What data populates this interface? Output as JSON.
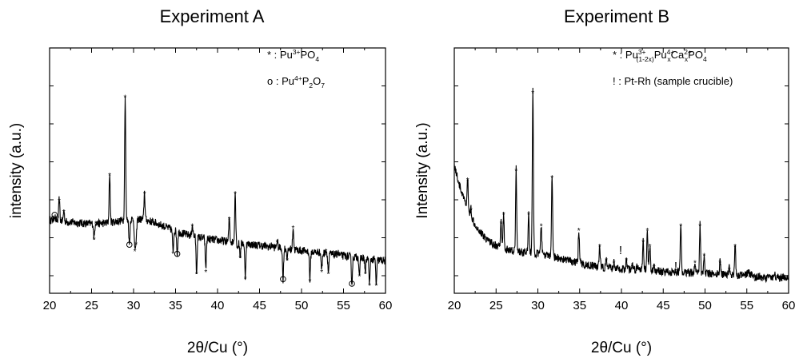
{
  "chart_data": [
    {
      "type": "line",
      "title": "Experiment A",
      "xlabel": "2θ/Cu (°)",
      "ylabel": "intensity (a.u.)",
      "xlim": [
        20,
        60
      ],
      "ylim": [
        0,
        1
      ],
      "x_ticks": [
        "20",
        "25",
        "30",
        "35",
        "40",
        "45",
        "50",
        "55",
        "60"
      ],
      "y_tick_labels": "none",
      "legend": [
        {
          "marker": "*",
          "sep": " : ",
          "base": "Pu",
          "sup": "3+",
          "rest": "PO",
          "sub": "4"
        },
        {
          "marker": "o",
          "sep": " : ",
          "base": "Pu",
          "sup": "4+",
          "rest": "P",
          "sub": "2",
          "rest2": "O",
          "sub2": "7"
        }
      ],
      "series": [
        {
          "values": "diffraction pattern"
        }
      ],
      "peaks": [
        {
          "x": 20.6,
          "y": 0.3,
          "m": "o"
        },
        {
          "x": 21.15,
          "y": 0.37,
          "m": "*"
        },
        {
          "x": 21.7,
          "y": 0.32,
          "m": "*"
        },
        {
          "x": 25.3,
          "y": 0.2,
          "m": "*"
        },
        {
          "x": 25.5,
          "y": 0.27,
          "m": "*"
        },
        {
          "x": 27.15,
          "y": 0.48,
          "m": "*"
        },
        {
          "x": 29.0,
          "y": 0.82,
          "m": "*"
        },
        {
          "x": 29.5,
          "y": 0.17,
          "m": "o"
        },
        {
          "x": 30.15,
          "y": 0.15,
          "m": "*"
        },
        {
          "x": 30.3,
          "y": 0.18,
          "m": "*"
        },
        {
          "x": 31.3,
          "y": 0.4,
          "m": "*"
        },
        {
          "x": 34.7,
          "y": 0.14,
          "m": "*"
        },
        {
          "x": 35.2,
          "y": 0.13,
          "m": "o"
        },
        {
          "x": 37.0,
          "y": 0.26,
          "m": "*"
        },
        {
          "x": 37.5,
          "y": 0.05,
          "m": "*"
        },
        {
          "x": 38.6,
          "y": 0.06,
          "m": "*"
        },
        {
          "x": 41.4,
          "y": 0.29,
          "m": "*"
        },
        {
          "x": 42.1,
          "y": 0.4,
          "m": "*"
        },
        {
          "x": 42.4,
          "y": 0.16,
          "m": "*"
        },
        {
          "x": 42.7,
          "y": 0.12,
          "m": "*"
        },
        {
          "x": 43.3,
          "y": 0.03,
          "m": "*"
        },
        {
          "x": 46.5,
          "y": 0.17,
          "m": "*"
        },
        {
          "x": 47.1,
          "y": 0.19,
          "m": "*"
        },
        {
          "x": 47.8,
          "y": 0.02,
          "m": "o"
        },
        {
          "x": 48.3,
          "y": 0.11,
          "m": "*"
        },
        {
          "x": 49.0,
          "y": 0.25,
          "m": "*"
        },
        {
          "x": 51.0,
          "y": 0.02,
          "m": "*"
        },
        {
          "x": 52.0,
          "y": 0.14,
          "m": "*"
        },
        {
          "x": 52.4,
          "y": 0.06,
          "m": "*"
        },
        {
          "x": 52.9,
          "y": 0.15,
          "m": "*"
        },
        {
          "x": 53.2,
          "y": 0.05,
          "m": "*"
        },
        {
          "x": 54.3,
          "y": 0.14,
          "m": "*"
        },
        {
          "x": 56.0,
          "y": 0.0,
          "m": "o"
        },
        {
          "x": 56.9,
          "y": 0.04,
          "m": "*"
        },
        {
          "x": 57.6,
          "y": 0.05,
          "m": "*"
        },
        {
          "x": 58.1,
          "y": 0.0,
          "m": "*"
        },
        {
          "x": 58.9,
          "y": 0.0,
          "m": "*"
        }
      ]
    },
    {
      "type": "line",
      "title": "Experiment B",
      "xlabel": "2θ/Cu (°)",
      "ylabel": "Intensity (a.u.)",
      "xlim": [
        20,
        60
      ],
      "ylim": [
        0,
        1
      ],
      "x_ticks": [
        "20",
        "25",
        "30",
        "35",
        "40",
        "45",
        "50",
        "55",
        "60"
      ],
      "y_tick_labels": "none",
      "legend": [
        {
          "marker": "*",
          "sep": " : ",
          "base": "Pu",
          "sup": "3+",
          "sub": "(1-2x)",
          "rest": "Pu",
          "sup2": "4+",
          "sub2": "x",
          "rest2": "Ca",
          "sup3": "2+",
          "sub3": "x",
          "rest3": "PO",
          "sub4": "4"
        },
        {
          "marker": "!",
          "sep": " : ",
          "text": "Pt-Rh (sample crucible)"
        }
      ],
      "series": [
        {
          "values": "diffraction pattern"
        }
      ],
      "peaks": [
        {
          "x": 21.6,
          "y": 0.46,
          "m": "*"
        },
        {
          "x": 22.0,
          "y": 0.33,
          "m": "*"
        },
        {
          "x": 25.6,
          "y": 0.27,
          "m": "*"
        },
        {
          "x": 25.9,
          "y": 0.31,
          "m": "*"
        },
        {
          "x": 27.4,
          "y": 0.5,
          "m": "*"
        },
        {
          "x": 28.9,
          "y": 0.31,
          "m": "*"
        },
        {
          "x": 29.4,
          "y": 0.84,
          "m": "*"
        },
        {
          "x": 30.4,
          "y": 0.26,
          "m": "*"
        },
        {
          "x": 31.7,
          "y": 0.47,
          "m": "*"
        },
        {
          "x": 34.9,
          "y": 0.24,
          "m": "*"
        },
        {
          "x": 37.4,
          "y": 0.17,
          "m": "*"
        },
        {
          "x": 38.2,
          "y": 0.11,
          "m": "*"
        },
        {
          "x": 39.1,
          "y": 0.1,
          "m": "*"
        },
        {
          "x": 40.6,
          "y": 0.11,
          "m": "*"
        },
        {
          "x": 41.3,
          "y": 0.08,
          "m": "*"
        },
        {
          "x": 41.9,
          "y": 0.08,
          "m": "*"
        },
        {
          "x": 42.6,
          "y": 0.19,
          "m": "*"
        },
        {
          "x": 43.1,
          "y": 0.24,
          "m": "*"
        },
        {
          "x": 43.4,
          "y": 0.17,
          "m": "*"
        },
        {
          "x": 43.9,
          "y": 0.08,
          "m": "*"
        },
        {
          "x": 45.9,
          "y": 0.05,
          "m": "*"
        },
        {
          "x": 47.1,
          "y": 0.26,
          "m": "*"
        },
        {
          "x": 47.9,
          "y": 0.06,
          "m": "*"
        },
        {
          "x": 48.8,
          "y": 0.1,
          "m": "*"
        },
        {
          "x": 49.4,
          "y": 0.26,
          "m": "*"
        },
        {
          "x": 49.9,
          "y": 0.13,
          "m": "*"
        },
        {
          "x": 51.8,
          "y": 0.1,
          "m": "*"
        },
        {
          "x": 52.9,
          "y": 0.07,
          "m": "*"
        },
        {
          "x": 53.6,
          "y": 0.17,
          "m": "*"
        },
        {
          "x": 55.2,
          "y": 0.06,
          "m": "*"
        },
        {
          "x": 56.0,
          "y": 0.02,
          "m": "*"
        },
        {
          "x": 56.8,
          "y": 0.02,
          "m": "*"
        },
        {
          "x": 57.3,
          "y": 0.02,
          "m": "*"
        },
        {
          "x": 58.3,
          "y": 0.04,
          "m": "*"
        },
        {
          "x": 59.0,
          "y": 0.02,
          "m": "*"
        },
        {
          "x": 39.9,
          "y": 0.15,
          "m": "!"
        },
        {
          "x": 46.5,
          "y": 0.08,
          "m": "!"
        }
      ]
    }
  ]
}
